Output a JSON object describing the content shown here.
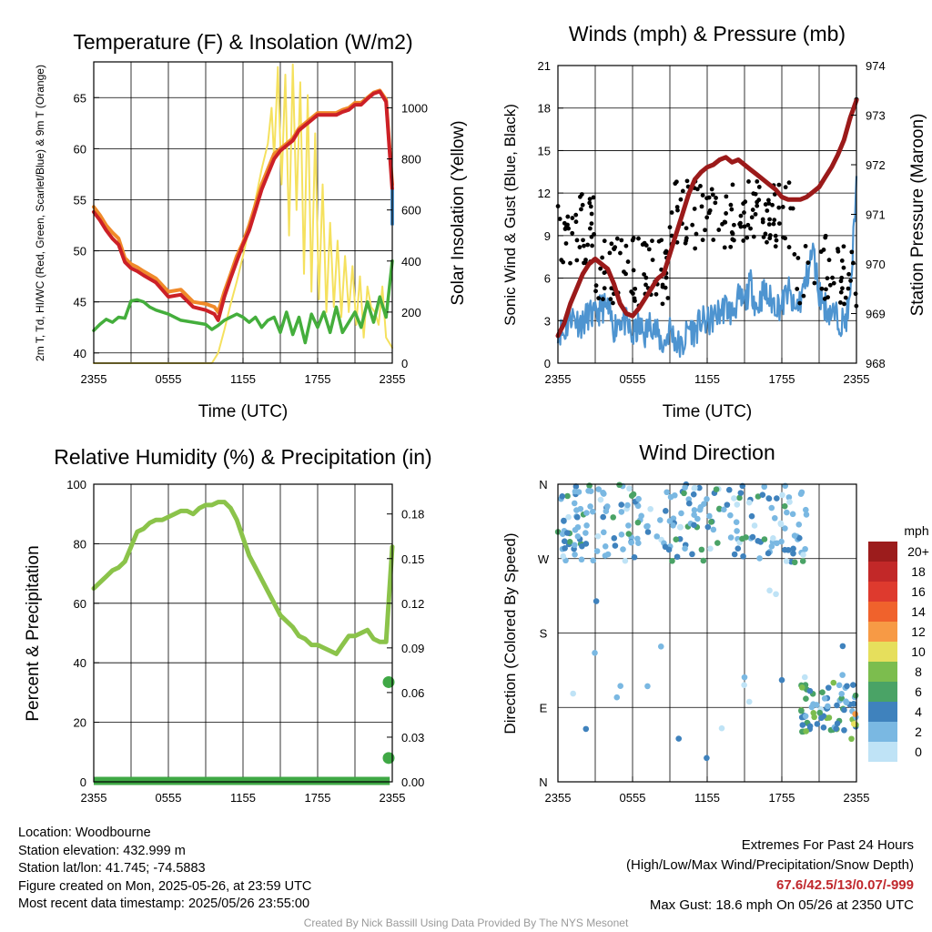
{
  "chart_data": [
    {
      "type": "line",
      "title": "Temperature (F) & Insolation (W/m2)",
      "xlabel": "Time (UTC)",
      "ylabel_left": "2m T, Td, HI/WC (Red, Green, Scarlet/Blue) & 9m T (Orange)",
      "ylabel_right": "Solar Insolation (Yellow)",
      "x_ticks": [
        "2355",
        "0555",
        "1155",
        "1755",
        "2355"
      ],
      "yleft_ticks": [
        40,
        45,
        50,
        55,
        60,
        65
      ],
      "yleft_range": [
        39,
        68.5
      ],
      "yright_ticks": [
        0,
        200,
        400,
        600,
        800,
        1000
      ],
      "yright_range": [
        0,
        1180
      ],
      "x_hours_range": [
        0,
        24
      ],
      "series": [
        {
          "name": "9m T",
          "color": "#f08a2a",
          "width": 4,
          "axis": "left",
          "x": [
            0,
            0.5,
            1,
            1.5,
            2,
            2.5,
            3,
            3.5,
            4,
            5,
            6,
            7,
            8,
            9,
            9.7,
            10,
            10.5,
            11,
            11.5,
            12,
            12.5,
            13,
            13.5,
            14,
            14.5,
            15,
            15.5,
            16,
            16.5,
            17,
            17.5,
            18,
            18.5,
            19,
            19.5,
            20,
            20.5,
            21,
            21.5,
            22,
            22.5,
            23,
            23.5,
            24
          ],
          "y": [
            54.3,
            53.5,
            52.5,
            51.8,
            51.2,
            49.3,
            48.7,
            48.4,
            48.0,
            47.3,
            46.0,
            46.2,
            45.0,
            44.8,
            44.5,
            44.0,
            46.0,
            47.7,
            49.5,
            50.8,
            52.5,
            54.5,
            56.5,
            58.0,
            59.5,
            60.0,
            60.5,
            61.0,
            62.0,
            62.5,
            63.0,
            63.5,
            63.5,
            63.5,
            63.5,
            63.8,
            64.0,
            64.5,
            64.5,
            65.0,
            65.5,
            65.7,
            64.8,
            56.5
          ]
        },
        {
          "name": "2m T",
          "color": "#cc2027",
          "width": 4,
          "axis": "left",
          "x": [
            0,
            0.5,
            1,
            1.5,
            2,
            2.5,
            3,
            3.5,
            4,
            5,
            6,
            7,
            8,
            9,
            9.7,
            10,
            10.5,
            11,
            11.5,
            12,
            12.5,
            13,
            13.5,
            14,
            14.5,
            15,
            15.5,
            16,
            16.5,
            17,
            17.5,
            18,
            18.5,
            19,
            19.5,
            20,
            20.5,
            21,
            21.5,
            22,
            22.5,
            23,
            23.5,
            24
          ],
          "y": [
            53.8,
            53.0,
            52.0,
            51.2,
            50.6,
            48.9,
            48.3,
            48.0,
            47.6,
            46.9,
            45.5,
            45.7,
            44.5,
            44.2,
            43.8,
            43.2,
            45.5,
            47.3,
            49.0,
            50.6,
            52.0,
            54.0,
            56.0,
            57.5,
            59.0,
            59.8,
            60.3,
            60.8,
            61.8,
            62.3,
            62.8,
            63.3,
            63.3,
            63.3,
            63.3,
            63.6,
            63.8,
            64.3,
            64.3,
            64.9,
            65.4,
            65.6,
            64.6,
            56.0
          ]
        },
        {
          "name": "Td",
          "color": "#44ae3c",
          "width": 3.5,
          "axis": "left",
          "x": [
            0,
            0.5,
            1,
            1.5,
            2,
            2.5,
            3,
            3.5,
            4,
            4.5,
            5,
            6,
            7,
            8,
            9,
            9.5,
            10,
            10.5,
            11,
            11.5,
            12,
            12.5,
            13,
            13.5,
            14,
            14.5,
            15,
            15.5,
            16,
            16.5,
            17,
            17.5,
            18,
            18.5,
            19,
            19.5,
            20,
            20.5,
            21,
            21.5,
            22,
            22.5,
            23,
            23.5,
            24
          ],
          "y": [
            42.2,
            42.8,
            43.3,
            43.0,
            43.5,
            43.4,
            45.1,
            45.2,
            45.0,
            44.5,
            44.2,
            43.8,
            43.2,
            43.0,
            42.8,
            42.3,
            42.7,
            43.2,
            43.5,
            43.8,
            43.5,
            43.0,
            43.5,
            42.5,
            43.2,
            43.5,
            42.0,
            44.0,
            41.8,
            43.5,
            41.0,
            43.8,
            42.5,
            44.0,
            42.0,
            44.5,
            42.0,
            43.0,
            44.0,
            42.5,
            45.0,
            43.0,
            45.5,
            43.5,
            49.0
          ]
        },
        {
          "name": "Solar Insolation",
          "color": "#f5e15e",
          "width": 2,
          "axis": "right",
          "x": [
            0,
            9.5,
            10,
            10.5,
            11,
            11.5,
            12,
            12.5,
            13,
            13.5,
            14,
            14.3,
            14.5,
            14.8,
            15.1,
            15.4,
            15.7,
            16,
            16.3,
            16.6,
            16.9,
            17.2,
            17.5,
            17.8,
            18.1,
            18.4,
            18.7,
            19,
            19.3,
            19.6,
            19.9,
            20.2,
            20.5,
            20.8,
            21.1,
            21.4,
            21.7,
            22,
            22.3,
            22.6,
            22.9,
            23.2,
            23.5,
            24
          ],
          "y": [
            0,
            0,
            40,
            130,
            230,
            320,
            420,
            530,
            640,
            760,
            860,
            1000,
            800,
            1160,
            700,
            1130,
            500,
            1170,
            600,
            1100,
            350,
            1050,
            280,
            900,
            250,
            700,
            200,
            550,
            220,
            480,
            180,
            420,
            200,
            380,
            150,
            340,
            100,
            300,
            220,
            200,
            150,
            300,
            100,
            60
          ]
        }
      ]
    },
    {
      "type": "line",
      "title": "Winds (mph) & Pressure (mb)",
      "xlabel": "Time (UTC)",
      "ylabel_left": "Sonic Wind & Gust (Blue, Black)",
      "ylabel_right": "Station Pressure (Maroon)",
      "x_ticks": [
        "2355",
        "0555",
        "1155",
        "1755",
        "2355"
      ],
      "yleft_ticks": [
        0,
        3,
        6,
        9,
        12,
        15,
        18,
        21
      ],
      "yleft_range": [
        0,
        21
      ],
      "yright_ticks": [
        968,
        969,
        970,
        971,
        972,
        973,
        974
      ],
      "yright_range": [
        968,
        974
      ],
      "x_hours_range": [
        0,
        24
      ],
      "series": [
        {
          "name": "Sonic Wind",
          "color": "#4e94d0",
          "width": 2.5,
          "axis": "left",
          "x": [
            0,
            0.5,
            1,
            1.5,
            2,
            2.5,
            3,
            3.5,
            4,
            4.5,
            5,
            5.5,
            6,
            6.5,
            7,
            7.5,
            8,
            8.5,
            9,
            9.5,
            10,
            10.5,
            11,
            11.5,
            12,
            12.5,
            13,
            13.5,
            14,
            14.5,
            15,
            15.5,
            16,
            16.5,
            17,
            17.5,
            18,
            18.5,
            19,
            19.5,
            20,
            20.5,
            21,
            21.5,
            22,
            22.5,
            23,
            23.5,
            24
          ],
          "y": [
            2.5,
            2.0,
            3.5,
            3.0,
            2.8,
            3.5,
            3.2,
            4.0,
            3.8,
            2.5,
            3.2,
            2.8,
            1.8,
            2.6,
            2.0,
            3.0,
            2.0,
            1.2,
            2.5,
            1.5,
            1.0,
            2.6,
            2.2,
            3.0,
            2.8,
            3.2,
            3.6,
            4.0,
            3.5,
            4.5,
            4.2,
            5.6,
            3.8,
            5.0,
            4.5,
            4.2,
            4.0,
            5.2,
            3.6,
            4.5,
            6.0,
            8.0,
            5.0,
            4.0,
            3.5,
            3.2,
            2.8,
            4.2,
            13.2
          ]
        },
        {
          "name": "Station Pressure",
          "color": "#9b1a1a",
          "width": 5,
          "axis": "right",
          "x": [
            0,
            0.5,
            1,
            1.5,
            2,
            2.5,
            3,
            3.5,
            4,
            4.5,
            5,
            5.5,
            6,
            6.5,
            7,
            7.5,
            8,
            8.5,
            9,
            9.5,
            10,
            10.5,
            11,
            11.5,
            12,
            12.5,
            13,
            13.5,
            14,
            14.5,
            15,
            15.5,
            16,
            16.5,
            17,
            17.5,
            18,
            18.5,
            19,
            19.5,
            20,
            20.5,
            21,
            21.5,
            22,
            22.5,
            23,
            23.5,
            24
          ],
          "y": [
            968.55,
            968.8,
            969.2,
            969.5,
            969.8,
            970.0,
            970.1,
            970.0,
            969.9,
            969.6,
            969.2,
            969.0,
            968.95,
            969.1,
            969.3,
            969.5,
            969.7,
            969.8,
            970.2,
            970.6,
            971.0,
            971.4,
            971.7,
            971.85,
            971.95,
            972.0,
            972.1,
            972.15,
            972.05,
            972.1,
            972.0,
            971.9,
            971.8,
            971.7,
            971.6,
            971.5,
            971.35,
            971.3,
            971.3,
            971.3,
            971.35,
            971.45,
            971.55,
            971.75,
            971.95,
            972.2,
            972.5,
            972.95,
            973.3
          ]
        }
      ]
    },
    {
      "type": "line",
      "title": "Relative Humidity (%) & Precipitation (in)",
      "ylabel_left": "Percent & Precipitation",
      "x_ticks": [
        "2355",
        "0555",
        "1155",
        "1755",
        "2355"
      ],
      "yleft_ticks": [
        0,
        20,
        40,
        60,
        80,
        100
      ],
      "yleft_range": [
        0,
        100
      ],
      "yright_ticks": [
        "0.00",
        "0.03",
        "0.06",
        "0.09",
        "0.12",
        "0.15",
        "0.18"
      ],
      "yright_range": [
        0,
        0.2
      ],
      "x_hours_range": [
        0,
        24
      ],
      "series": [
        {
          "name": "Relative Humidity",
          "color": "#8bc34a",
          "width": 5,
          "axis": "left",
          "x": [
            0,
            0.5,
            1,
            1.5,
            2,
            2.5,
            3,
            3.5,
            4,
            4.5,
            5,
            5.5,
            6,
            6.5,
            7,
            7.5,
            8,
            8.5,
            9,
            9.5,
            10,
            10.5,
            11,
            11.5,
            12,
            12.5,
            13,
            13.5,
            14,
            14.5,
            15,
            15.5,
            16,
            16.5,
            17,
            17.5,
            18,
            18.5,
            19,
            19.5,
            20,
            20.5,
            21,
            21.5,
            22,
            22.5,
            23,
            23.5,
            24
          ],
          "y": [
            65,
            67,
            69,
            71,
            72,
            74,
            79,
            84,
            85,
            87,
            88,
            88,
            89,
            90,
            91,
            91,
            90,
            92,
            93,
            93,
            94,
            94,
            92,
            88,
            82,
            76,
            72,
            68,
            64,
            60,
            56,
            54,
            52,
            49,
            48,
            46,
            46,
            45,
            44,
            43,
            46,
            49,
            49,
            50,
            51,
            48,
            47,
            47,
            79
          ]
        },
        {
          "name": "Precipitation",
          "color": "#3fa845",
          "width": 5,
          "axis": "right",
          "x": [
            0,
            23.8
          ],
          "y": [
            0,
            0
          ],
          "markers": [
            {
              "x": 24,
              "y": 0.016
            },
            {
              "x": 24,
              "y": 0.067
            }
          ]
        }
      ]
    },
    {
      "type": "scatter",
      "title": "Wind Direction",
      "ylabel": "Direction (Colored By Speed)",
      "x_ticks": [
        "2355",
        "0555",
        "1155",
        "1755",
        "2355"
      ],
      "y_ticks": [
        "N",
        "E",
        "S",
        "W",
        "N"
      ],
      "y_range": [
        0,
        360
      ],
      "legend_title": "mph",
      "legend_labels": [
        "20+",
        "18",
        "16",
        "14",
        "12",
        "10",
        "8",
        "6",
        "4",
        "2",
        "0"
      ],
      "legend_colors": [
        "#9c1c1c",
        "#c22828",
        "#de3a2e",
        "#f0622c",
        "#f79a45",
        "#e6df5c",
        "#7cbd4e",
        "#4aa366",
        "#3f82bd",
        "#7ab8e2",
        "#bfe3f6"
      ]
    }
  ],
  "info_left": {
    "location": "Location: Woodbourne",
    "elevation": "Station elevation: 432.999 m",
    "latlon": "Station lat/lon: 41.745; -74.5883",
    "created": "Figure created on Mon, 2025-05-26, at 23:59 UTC",
    "recent": "Most recent data timestamp: 2025/05/26 23:55:00"
  },
  "info_right": {
    "header": "Extremes For Past 24 Hours",
    "sub": "(High/Low/Max Wind/Precipitation/Snow Depth)",
    "values": "67.6/42.5/13/0.07/-999",
    "gust": "Max Gust: 18.6 mph On 05/26 at 2350 UTC"
  },
  "credit": "Created By Nick Bassill Using Data Provided By The NYS Mesonet"
}
